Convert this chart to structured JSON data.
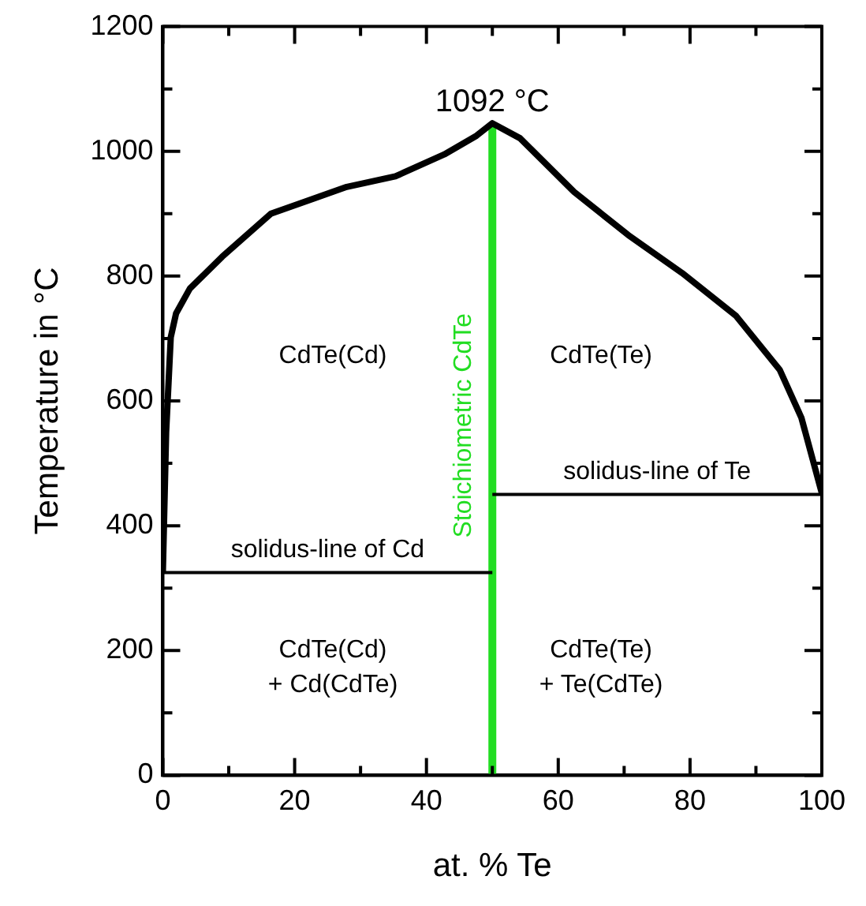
{
  "chart_data": {
    "type": "line",
    "xlabel": "at. % Te",
    "ylabel": "Temperature in °C",
    "xlim": [
      0,
      100
    ],
    "xticks": [
      0,
      {
        "value": 10,
        "label": null
      },
      20,
      {
        "value": 30,
        "label": null
      },
      40,
      {
        "value": 50,
        "label": null
      },
      60,
      {
        "value": 70,
        "label": null
      },
      80,
      {
        "value": 90,
        "label": null
      },
      100
    ],
    "ylim": [
      0,
      1200
    ],
    "yticks": [
      0,
      {
        "value": 100,
        "label": null
      },
      200,
      {
        "value": 300,
        "label": null
      },
      400,
      {
        "value": 500,
        "label": null
      },
      600,
      {
        "value": 700,
        "label": null
      },
      800,
      {
        "value": 900,
        "label": null
      },
      1000,
      {
        "value": 1100,
        "label": null
      },
      1200
    ],
    "grid": false,
    "legend": false,
    "marker": "none",
    "line_style": "solid",
    "series": [
      {
        "color": "#000000",
        "x": [
          0,
          0.5,
          1.2,
          2,
          4.1,
          9,
          16.4,
          27.9,
          35.3,
          42.7,
          47.6,
          50,
          54.2,
          62.4,
          70.6,
          78.8,
          87,
          93.6,
          96.9,
          100
        ],
        "values": [
          325,
          550,
          702,
          740,
          780,
          831,
          900,
          943,
          960,
          995,
          1025,
          1045,
          1021,
          935,
          866,
          805,
          736,
          650,
          573,
          452
        ]
      },
      {
        "name": "solidus-line of Cd",
        "color": "#000000",
        "x": [
          0,
          50
        ],
        "values": [
          325,
          325
        ]
      },
      {
        "name": "solidus-line of Te",
        "color": "#000000",
        "x": [
          50,
          100
        ],
        "values": [
          450,
          450
        ]
      },
      {
        "name": "Stoichiometric CdTe",
        "color": "#22dd22",
        "x": [
          50,
          50
        ],
        "values": [
          0,
          1045
        ]
      }
    ],
    "annotations": [
      {
        "text": "1092 °C",
        "x": 50,
        "y": 1045
      },
      "CdTe(Cd)",
      "CdTe(Te)",
      "CdTe(Cd)\n+ Cd(CdTe)",
      "CdTe(Te)\n+ Te(CdTe)"
    ]
  }
}
